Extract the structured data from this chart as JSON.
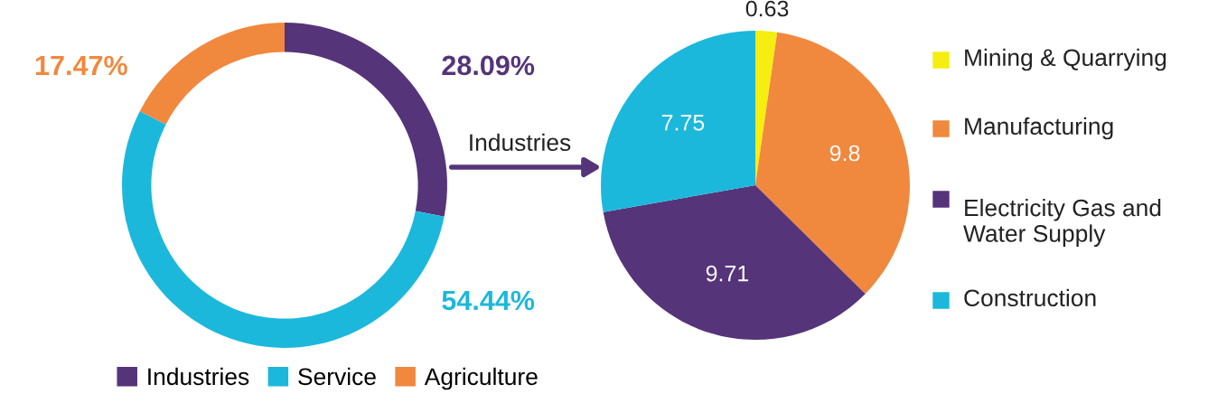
{
  "chart_data": [
    {
      "type": "donut",
      "categories": [
        "Industries",
        "Service",
        "Agriculture"
      ],
      "values": [
        28.09,
        54.44,
        17.47
      ],
      "colors": [
        "#55347a",
        "#1cb8dc",
        "#f0883e"
      ],
      "value_labels": [
        "28.09%",
        "54.44%",
        "17.47%"
      ],
      "legend": "bottom",
      "annotations": [
        "Industries"
      ]
    },
    {
      "type": "pie",
      "categories": [
        "Mining & Quarrying",
        "Manufacturing",
        "Electricity Gas and Water Supply",
        "Construction"
      ],
      "values": [
        0.63,
        9.8,
        9.71,
        7.75
      ],
      "colors": [
        "#f5ee10",
        "#f0883e",
        "#55347a",
        "#1cb8dc"
      ],
      "data_labels": true,
      "legend": "right"
    }
  ]
}
